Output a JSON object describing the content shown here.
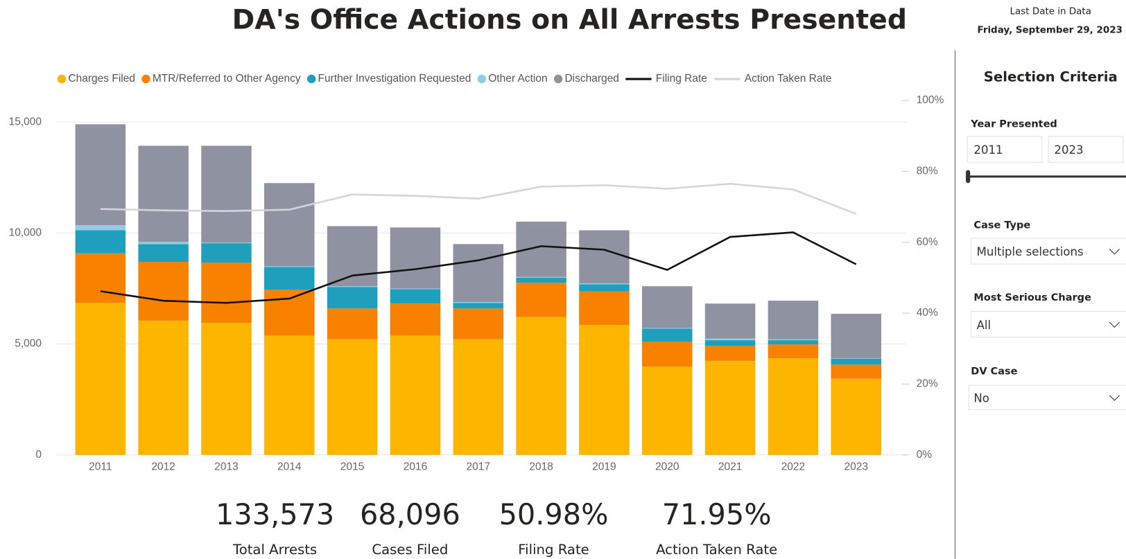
{
  "header": {
    "title": "DA's Office Actions on All Arrests Presented",
    "last_date_label": "Last Date in Data",
    "last_date": "Friday, September 29, 2023"
  },
  "chart_data": {
    "type": "bar",
    "stacked": true,
    "categories": [
      "2011",
      "2012",
      "2013",
      "2014",
      "2015",
      "2016",
      "2017",
      "2018",
      "2019",
      "2020",
      "2021",
      "2022",
      "2023"
    ],
    "series": [
      {
        "name": "Charges Filed",
        "color": "#fdb500",
        "values": [
          6850,
          6050,
          5950,
          5370,
          5210,
          5370,
          5210,
          6210,
          5850,
          3980,
          4240,
          4360,
          3430
        ]
      },
      {
        "name": "MTR/Referred to Other Agency",
        "color": "#f98100",
        "values": [
          2230,
          2650,
          2710,
          2070,
          1390,
          1450,
          1390,
          1550,
          1520,
          1130,
          670,
          620,
          640
        ]
      },
      {
        "name": "Further Investigation Requested",
        "color": "#209fbd",
        "values": [
          1040,
          800,
          880,
          1030,
          970,
          650,
          250,
          230,
          320,
          580,
          260,
          190,
          260
        ]
      },
      {
        "name": "Other Action",
        "color": "#8ecde8",
        "values": [
          230,
          100,
          30,
          30,
          30,
          30,
          40,
          30,
          40,
          30,
          70,
          40,
          20
        ]
      },
      {
        "name": "Discharged",
        "color": "#8f92a1",
        "values": [
          4550,
          4330,
          4360,
          3750,
          2710,
          2750,
          2610,
          2490,
          2390,
          1880,
          1580,
          1740,
          2010
        ]
      }
    ],
    "line_series": [
      {
        "name": "Filing Rate",
        "color": "#111111",
        "axis": "y2",
        "values": [
          46.2,
          43.5,
          42.9,
          44.1,
          50.6,
          52.4,
          54.9,
          58.9,
          57.9,
          52.2,
          61.5,
          62.8,
          53.8
        ]
      },
      {
        "name": "Action Taken Rate",
        "color": "#d4d4da",
        "axis": "y2",
        "values": [
          69.4,
          69.0,
          68.8,
          69.2,
          73.5,
          73.1,
          72.3,
          75.7,
          76.1,
          75.1,
          76.5,
          74.9,
          68.0
        ]
      }
    ],
    "ylim": [
      0,
      15000
    ],
    "yticks": [
      0,
      {
        "value": 5000,
        "label": "5,000"
      },
      {
        "value": 10000,
        "label": "10,000"
      },
      {
        "value": 15000,
        "label": "15,000"
      }
    ],
    "y2lim": [
      0,
      100
    ],
    "y2ticks": [
      {
        "value": 0,
        "label": "0%"
      },
      {
        "value": 20,
        "label": "20%"
      },
      {
        "value": 40,
        "label": "40%"
      },
      {
        "value": 60,
        "label": "60%"
      },
      {
        "value": 80,
        "label": "80%"
      },
      {
        "value": 100,
        "label": "100%"
      }
    ],
    "grid": true,
    "legend": "top"
  },
  "kpis": [
    {
      "value": "133,573",
      "label": "Total Arrests"
    },
    {
      "value": "68,096",
      "label": "Cases Filed"
    },
    {
      "value": "50.98%",
      "label": "Filing Rate"
    },
    {
      "value": "71.95%",
      "label": "Action Taken Rate"
    }
  ],
  "filters": {
    "title": "Selection Criteria",
    "year": {
      "label": "Year Presented",
      "from": "2011",
      "to": "2023"
    },
    "case_type": {
      "label": "Case Type",
      "value": "Multiple selections"
    },
    "charge": {
      "label": "Most Serious Charge",
      "value": "All"
    },
    "dv": {
      "label": "DV Case",
      "value": "No"
    }
  }
}
